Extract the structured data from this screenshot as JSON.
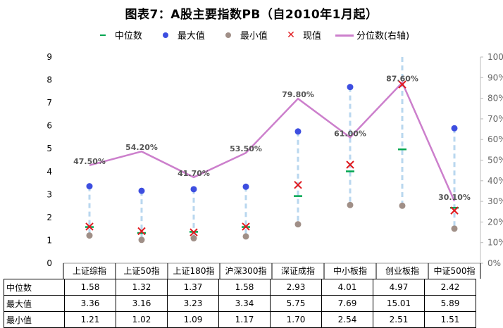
{
  "chart_data": {
    "type": "line",
    "title": "图表7：A股主要指数PB（自2010年1月起）",
    "categories": [
      "上证综指",
      "上证50指",
      "上证180指",
      "沪深300指",
      "深证成指",
      "中小板指",
      "创业板指",
      "中证500指"
    ],
    "legend": [
      "中位数",
      "最大值",
      "最小值",
      "现值",
      "分位数(右轴)"
    ],
    "legend_position": "top",
    "left_axis": {
      "ylim": [
        0,
        9
      ],
      "ticks": [
        "0",
        "1",
        "2",
        "3",
        "4",
        "5",
        "6",
        "7",
        "8",
        "9"
      ]
    },
    "right_axis": {
      "ylim": [
        0,
        100
      ],
      "ticks": [
        "0%",
        "10%",
        "20%",
        "30%",
        "40%",
        "50%",
        "60%",
        "70%",
        "80%",
        "90%",
        "100%"
      ]
    },
    "series": [
      {
        "name": "中位数",
        "values": [
          1.58,
          1.32,
          1.37,
          1.58,
          2.93,
          4.01,
          4.97,
          2.42
        ]
      },
      {
        "name": "最大值",
        "values": [
          3.36,
          3.16,
          3.23,
          3.34,
          5.75,
          7.69,
          15.01,
          5.89
        ]
      },
      {
        "name": "最小值",
        "values": [
          1.21,
          1.02,
          1.09,
          1.17,
          1.7,
          2.54,
          2.51,
          1.51
        ]
      },
      {
        "name": "现值",
        "values": [
          1.6,
          1.4,
          1.35,
          1.6,
          3.42,
          4.3,
          7.8,
          2.3
        ]
      },
      {
        "name": "分位数(右轴)",
        "axis": "right",
        "values": [
          47.5,
          54.2,
          41.7,
          53.5,
          79.8,
          61.0,
          87.6,
          30.1
        ],
        "labels": [
          "47.50%",
          "54.20%",
          "41.70%",
          "53.50%",
          "79.80%",
          "61.00%",
          "87.60%",
          "30.10%"
        ]
      }
    ],
    "colors": {
      "median": "#00a651",
      "max": "#3d4ee0",
      "min": "#a08f87",
      "current": "#e0191e",
      "percentile": "#cc7fcc",
      "range": "#b9d7ef"
    },
    "table": {
      "rows": [
        {
          "label": "中位数",
          "values": [
            "1.58",
            "1.32",
            "1.37",
            "1.58",
            "2.93",
            "4.01",
            "4.97",
            "2.42"
          ]
        },
        {
          "label": "最大值",
          "values": [
            "3.36",
            "3.16",
            "3.23",
            "3.34",
            "5.75",
            "7.69",
            "15.01",
            "5.89"
          ]
        },
        {
          "label": "最小值",
          "values": [
            "1.21",
            "1.02",
            "1.09",
            "1.17",
            "1.70",
            "2.54",
            "2.51",
            "1.51"
          ]
        }
      ]
    }
  }
}
